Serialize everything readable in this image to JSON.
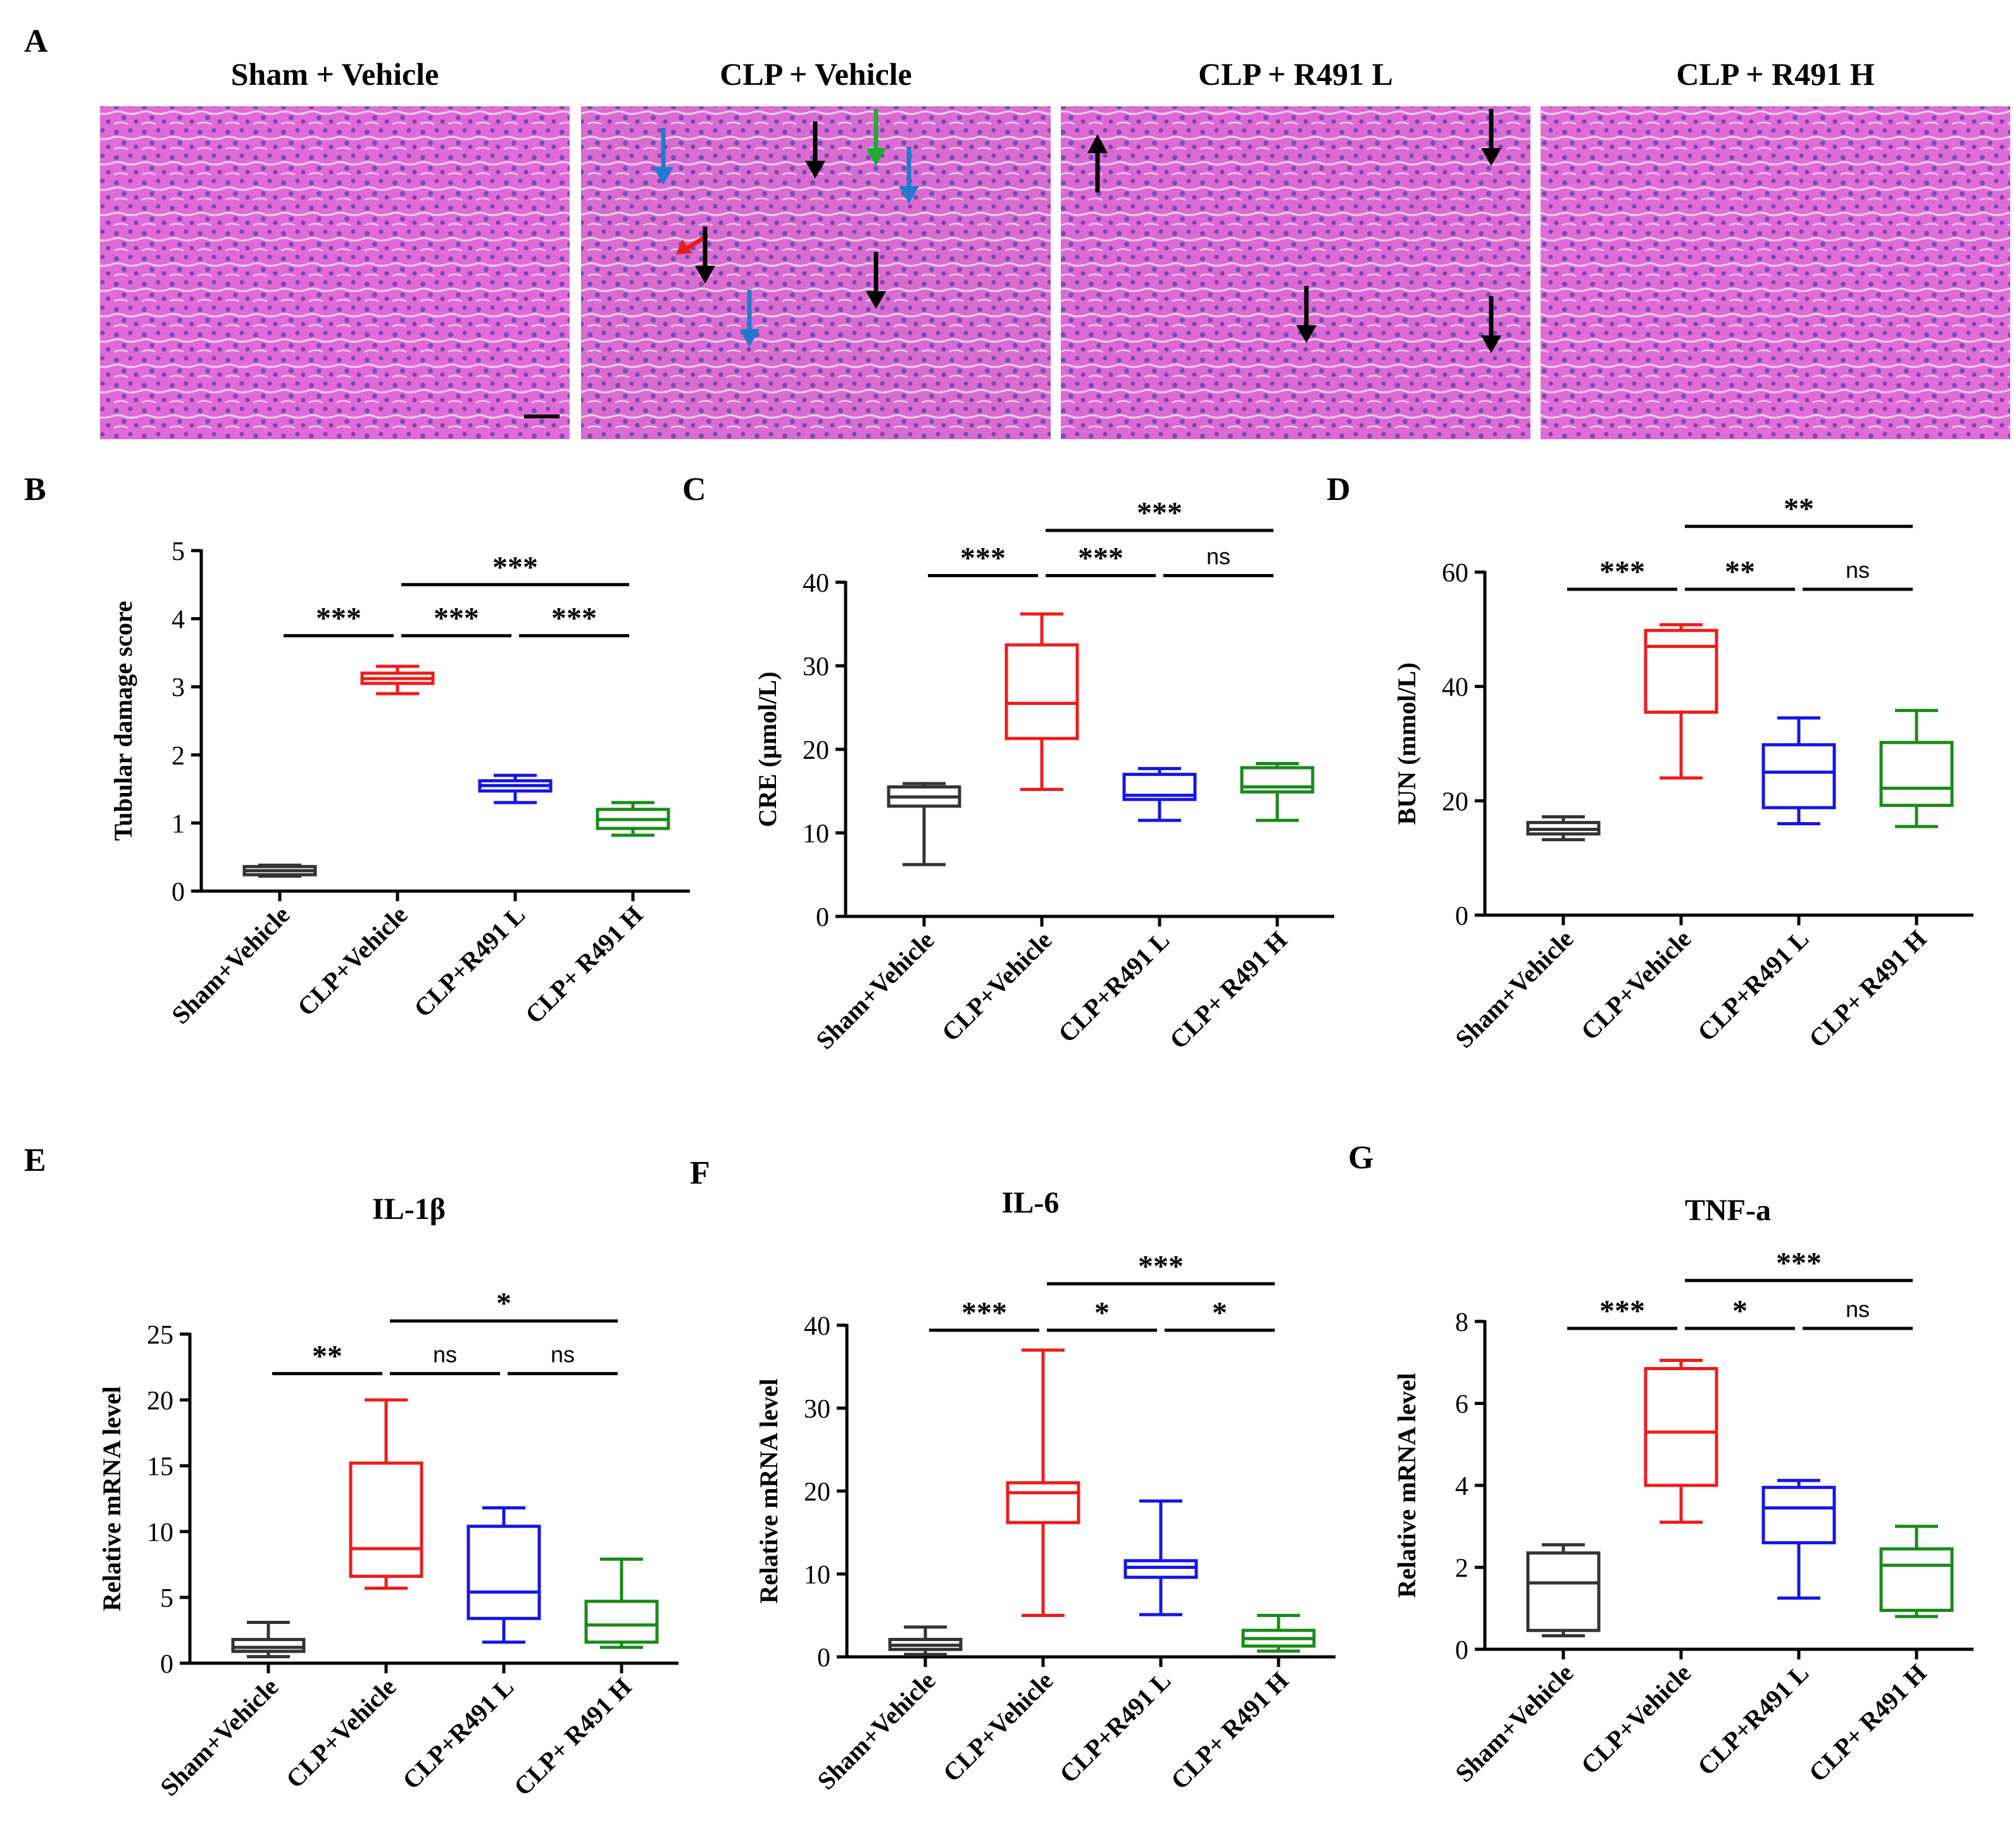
{
  "panel_a": {
    "letter": "A",
    "images": [
      {
        "title": "Sham + Vehicle",
        "tissue": "#e06ad8",
        "arrows": []
      },
      {
        "title": "CLP + Vehicle",
        "tissue": "#d86cd0",
        "arrows": [
          {
            "color": "#1f7bd0",
            "dir": "down"
          },
          {
            "color": "#000000",
            "dir": "down"
          },
          {
            "color": "#22aa33",
            "dir": "down"
          },
          {
            "color": "#1f7bd0",
            "dir": "down"
          },
          {
            "color": "#e0201a",
            "dir": "downleft"
          },
          {
            "color": "#000000",
            "dir": "down"
          },
          {
            "color": "#000000",
            "dir": "down"
          },
          {
            "color": "#1f7bd0",
            "dir": "down"
          }
        ]
      },
      {
        "title": "CLP + R491 L",
        "tissue": "#dc6ad4",
        "arrows": [
          {
            "color": "#000000",
            "dir": "up"
          },
          {
            "color": "#000000",
            "dir": "down"
          },
          {
            "color": "#000000",
            "dir": "down"
          },
          {
            "color": "#000000",
            "dir": "down"
          }
        ]
      },
      {
        "title": "CLP + R491 H",
        "tissue": "#e06cd8",
        "arrows": []
      }
    ]
  },
  "chart_data": [
    {
      "type": "box",
      "letter": "B",
      "title": "",
      "ylabel": "Tubular damage score",
      "ylim": [
        0,
        5
      ],
      "yticks": [
        0,
        1,
        2,
        3,
        4,
        5
      ],
      "categories": [
        "Sham+Vehicle",
        "CLP+Vehicle",
        "CLP+R491 L",
        "CLP+ R491 H"
      ],
      "colors": [
        "#333333",
        "#ee1c1c",
        "#1616e6",
        "#1a8a1a"
      ],
      "boxes": [
        {
          "min": 0.22,
          "q1": 0.24,
          "median": 0.3,
          "q3": 0.36,
          "max": 0.38
        },
        {
          "min": 2.9,
          "q1": 3.05,
          "median": 3.12,
          "q3": 3.2,
          "max": 3.3
        },
        {
          "min": 1.3,
          "q1": 1.47,
          "median": 1.55,
          "q3": 1.62,
          "max": 1.7
        },
        {
          "min": 0.82,
          "q1": 0.92,
          "median": 1.05,
          "q3": 1.2,
          "max": 1.3
        }
      ],
      "comparisons": [
        {
          "from": 0,
          "to": 1,
          "y": 3.75,
          "label": "***"
        },
        {
          "from": 1,
          "to": 2,
          "y": 3.75,
          "label": "***"
        },
        {
          "from": 2,
          "to": 3,
          "y": 3.75,
          "label": "***"
        },
        {
          "from": 1,
          "to": 3,
          "y": 4.5,
          "label": "***"
        }
      ]
    },
    {
      "type": "box",
      "letter": "C",
      "title": "",
      "ylabel": "CRE (μmol/L)",
      "ylim": [
        0,
        40
      ],
      "yticks": [
        0,
        10,
        20,
        30,
        40
      ],
      "categories": [
        "Sham+Vehicle",
        "CLP+Vehicle",
        "CLP+R491 L",
        "CLP+ R491 H"
      ],
      "colors": [
        "#333333",
        "#ee1c1c",
        "#1616e6",
        "#1a8a1a"
      ],
      "boxes": [
        {
          "min": 6.2,
          "q1": 13.2,
          "median": 14.3,
          "q3": 15.5,
          "max": 15.9
        },
        {
          "min": 15.2,
          "q1": 21.3,
          "median": 25.5,
          "q3": 32.5,
          "max": 36.2
        },
        {
          "min": 11.5,
          "q1": 14.0,
          "median": 14.5,
          "q3": 17.0,
          "max": 17.7
        },
        {
          "min": 11.5,
          "q1": 14.9,
          "median": 15.5,
          "q3": 17.8,
          "max": 18.3
        }
      ],
      "comparisons": [
        {
          "from": 0,
          "to": 1,
          "y": 40.8,
          "label": "***"
        },
        {
          "from": 1,
          "to": 2,
          "y": 40.8,
          "label": "***"
        },
        {
          "from": 2,
          "to": 3,
          "y": 40.8,
          "label": "ns"
        },
        {
          "from": 1,
          "to": 3,
          "y": 46.2,
          "label": "***"
        }
      ]
    },
    {
      "type": "box",
      "letter": "D",
      "title": "",
      "ylabel": "BUN (mmol/L)",
      "ylim": [
        0,
        60
      ],
      "yticks": [
        0,
        20,
        40,
        60
      ],
      "categories": [
        "Sham+Vehicle",
        "CLP+Vehicle",
        "CLP+R491 L",
        "CLP+ R491 H"
      ],
      "colors": [
        "#333333",
        "#ee1c1c",
        "#1616e6",
        "#1a8a1a"
      ],
      "boxes": [
        {
          "min": 13.2,
          "q1": 14.2,
          "median": 15.0,
          "q3": 16.2,
          "max": 17.2
        },
        {
          "min": 24.0,
          "q1": 35.5,
          "median": 47.0,
          "q3": 49.8,
          "max": 50.8
        },
        {
          "min": 16.0,
          "q1": 18.8,
          "median": 25.0,
          "q3": 29.8,
          "max": 34.5
        },
        {
          "min": 15.5,
          "q1": 19.2,
          "median": 22.2,
          "q3": 30.2,
          "max": 35.8
        }
      ],
      "comparisons": [
        {
          "from": 0,
          "to": 1,
          "y": 57.0,
          "label": "***"
        },
        {
          "from": 1,
          "to": 2,
          "y": 57.0,
          "label": "**"
        },
        {
          "from": 2,
          "to": 3,
          "y": 57.0,
          "label": "ns"
        },
        {
          "from": 1,
          "to": 3,
          "y": 68.0,
          "label": "**"
        }
      ]
    },
    {
      "type": "box",
      "letter": "E",
      "title": "IL-1β",
      "ylabel": "Relative mRNA level",
      "ylim": [
        0,
        25
      ],
      "yticks": [
        0,
        5,
        10,
        15,
        20,
        25
      ],
      "categories": [
        "Sham+Vehicle",
        "CLP+Vehicle",
        "CLP+R491 L",
        "CLP+ R491 H"
      ],
      "colors": [
        "#333333",
        "#ee1c1c",
        "#1616e6",
        "#1a8a1a"
      ],
      "boxes": [
        {
          "min": 0.5,
          "q1": 0.9,
          "median": 1.2,
          "q3": 1.8,
          "max": 3.1
        },
        {
          "min": 5.7,
          "q1": 6.6,
          "median": 8.7,
          "q3": 15.2,
          "max": 20.0
        },
        {
          "min": 1.6,
          "q1": 3.4,
          "median": 5.4,
          "q3": 10.4,
          "max": 11.8
        },
        {
          "min": 1.2,
          "q1": 1.6,
          "median": 2.9,
          "q3": 4.7,
          "max": 7.9
        }
      ],
      "comparisons": [
        {
          "from": 0,
          "to": 1,
          "y": 22.0,
          "label": "**"
        },
        {
          "from": 1,
          "to": 2,
          "y": 22.0,
          "label": "ns"
        },
        {
          "from": 2,
          "to": 3,
          "y": 22.0,
          "label": "ns"
        },
        {
          "from": 1,
          "to": 3,
          "y": 26.0,
          "label": "*"
        }
      ]
    },
    {
      "type": "box",
      "letter": "F",
      "title": "IL-6",
      "ylabel": "Relative mRNA level",
      "ylim": [
        0,
        40
      ],
      "yticks": [
        0,
        10,
        20,
        30,
        40
      ],
      "categories": [
        "Sham+Vehicle",
        "CLP+Vehicle",
        "CLP+R491 L",
        "CLP+ R491 H"
      ],
      "colors": [
        "#333333",
        "#ee1c1c",
        "#1616e6",
        "#1a8a1a"
      ],
      "boxes": [
        {
          "min": 0.3,
          "q1": 0.9,
          "median": 1.4,
          "q3": 2.1,
          "max": 3.6
        },
        {
          "min": 5.0,
          "q1": 16.2,
          "median": 19.8,
          "q3": 21.0,
          "max": 37.0
        },
        {
          "min": 5.1,
          "q1": 9.6,
          "median": 10.8,
          "q3": 11.6,
          "max": 18.8
        },
        {
          "min": 0.7,
          "q1": 1.3,
          "median": 2.2,
          "q3": 3.2,
          "max": 5.0
        }
      ],
      "comparisons": [
        {
          "from": 0,
          "to": 1,
          "y": 39.4,
          "label": "***"
        },
        {
          "from": 1,
          "to": 2,
          "y": 39.4,
          "label": "*"
        },
        {
          "from": 2,
          "to": 3,
          "y": 39.4,
          "label": "*"
        },
        {
          "from": 1,
          "to": 3,
          "y": 45.0,
          "label": "***"
        }
      ]
    },
    {
      "type": "box",
      "letter": "G",
      "title": "TNF-a",
      "ylabel": "Relative mRNA level",
      "ylim": [
        0,
        8
      ],
      "yticks": [
        0,
        2,
        4,
        6,
        8
      ],
      "categories": [
        "Sham+Vehicle",
        "CLP+Vehicle",
        "CLP+R491 L",
        "CLP+ R491 H"
      ],
      "colors": [
        "#333333",
        "#ee1c1c",
        "#1616e6",
        "#1a8a1a"
      ],
      "boxes": [
        {
          "min": 0.33,
          "q1": 0.46,
          "median": 1.62,
          "q3": 2.35,
          "max": 2.55
        },
        {
          "min": 3.1,
          "q1": 4.0,
          "median": 5.3,
          "q3": 6.85,
          "max": 7.05
        },
        {
          "min": 1.25,
          "q1": 2.6,
          "median": 3.45,
          "q3": 3.95,
          "max": 4.12
        },
        {
          "min": 0.8,
          "q1": 0.95,
          "median": 2.05,
          "q3": 2.45,
          "max": 3.0
        }
      ],
      "comparisons": [
        {
          "from": 0,
          "to": 1,
          "y": 7.83,
          "label": "***"
        },
        {
          "from": 1,
          "to": 2,
          "y": 7.83,
          "label": "*"
        },
        {
          "from": 2,
          "to": 3,
          "y": 7.83,
          "label": "ns"
        },
        {
          "from": 1,
          "to": 3,
          "y": 9.0,
          "label": "***"
        }
      ]
    }
  ]
}
